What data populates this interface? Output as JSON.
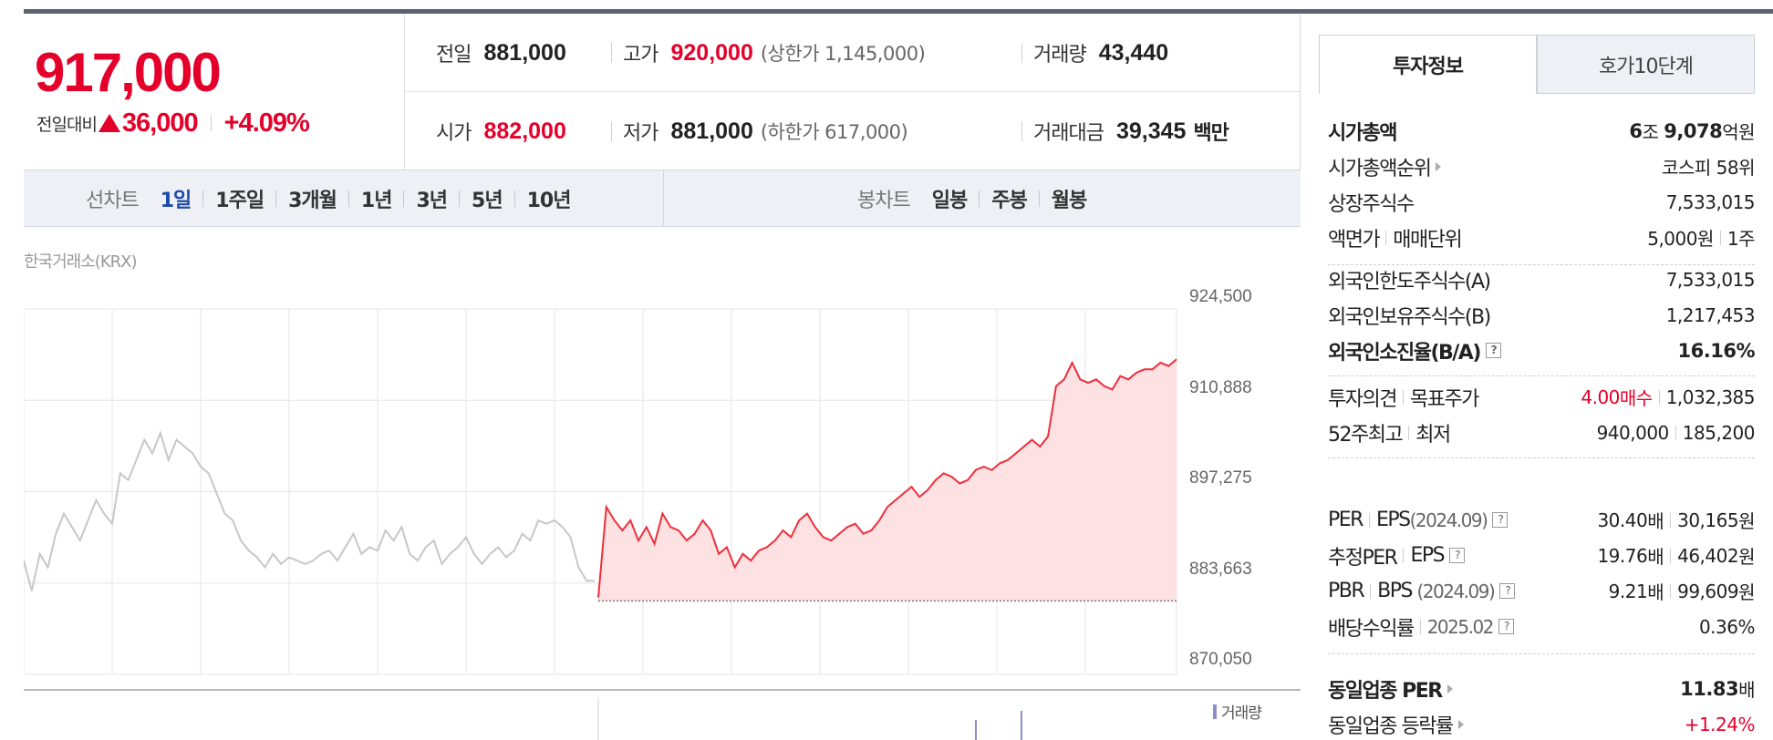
{
  "quote": {
    "current_price": "917,000",
    "change_label": "전일대비",
    "change_value": "36,000",
    "change_pct": "+4.09%",
    "prev_close_label": "전일",
    "prev_close": "881,000",
    "high_label": "고가",
    "high": "920,000",
    "upper_limit": "(상한가 1,145,000)",
    "volume_label": "거래량",
    "volume": "43,440",
    "open_label": "시가",
    "open": "882,000",
    "low_label": "저가",
    "low": "881,000",
    "lower_limit": "(하한가 617,000)",
    "amount_label": "거래대금",
    "amount": "39,345",
    "amount_unit": "백만",
    "colors": {
      "up": "#e4002b",
      "accent": "#1c4aa8"
    }
  },
  "period_bar": {
    "line_chart_label": "선차트",
    "line_periods": [
      "1일",
      "1주일",
      "3개월",
      "1년",
      "3년",
      "5년",
      "10년"
    ],
    "active_period": "1일",
    "candle_chart_label": "봉차트",
    "candle_periods": [
      "일봉",
      "주봉",
      "월봉"
    ]
  },
  "chart": {
    "exchange_label": "한국거래소(KRX)",
    "volume_legend": "거래량"
  },
  "chart_data": {
    "type": "line",
    "ylim": [
      870050,
      924500
    ],
    "yticks": [
      "924,500",
      "910,888",
      "897,275",
      "883,663",
      "870,050"
    ],
    "baseline": 881000,
    "series": [
      {
        "values": [
          887000,
          882500,
          888000,
          886000,
          891000,
          894000,
          892000,
          890000,
          893000,
          896000,
          894000,
          892500,
          900000,
          899000,
          902000,
          905000,
          903000,
          906000,
          902000,
          905000,
          904000,
          903000,
          901000,
          900000,
          897000,
          894000,
          893000,
          890000,
          888500,
          887500,
          886000,
          888000,
          886500,
          887500,
          887000,
          886500,
          887000,
          888000,
          888500,
          887000,
          889000,
          891000,
          888000,
          889000,
          888500,
          891500,
          890000,
          892000,
          888000,
          887000,
          889000,
          890000,
          886500,
          888000,
          889000,
          890500,
          888000,
          886500,
          888000,
          889000,
          887500,
          888500,
          891000,
          890000,
          893000,
          892500,
          893000,
          892000,
          890500,
          886000,
          884000,
          884000
        ]
      },
      {
        "values": [
          881500,
          895000,
          893000,
          891500,
          893000,
          890000,
          892000,
          889500,
          894000,
          892000,
          891500,
          890000,
          891000,
          893000,
          891500,
          888000,
          889000,
          886000,
          888000,
          887000,
          888500,
          889000,
          890000,
          891500,
          890500,
          893000,
          894000,
          892000,
          890500,
          890000,
          891000,
          892000,
          892500,
          891000,
          891500,
          893000,
          895000,
          896000,
          897000,
          898000,
          896500,
          897500,
          899000,
          900000,
          899500,
          898500,
          899000,
          900500,
          901000,
          900500,
          901500,
          902000,
          903000,
          904000,
          905000,
          904000,
          905500,
          913000,
          914000,
          916500,
          914000,
          913500,
          914000,
          913000,
          912500,
          914500,
          914000,
          915000,
          915500,
          915500,
          916500,
          916000,
          917000
        ]
      }
    ]
  },
  "invest_info": {
    "tabs": [
      "투자정보",
      "호가10단계"
    ],
    "market_cap_label": "시가총액",
    "market_cap_jo": "6",
    "market_cap_jo_unit": "조",
    "market_cap_eok": "9,078",
    "market_cap_eok_unit": "억원",
    "market_cap_rank_label": "시가총액순위",
    "market_cap_rank": "코스피 58위",
    "listed_shares_label": "상장주식수",
    "listed_shares": "7,533,015",
    "face_value_label": "액면가",
    "trade_unit_label": "매매단위",
    "face_value": "5,000원",
    "trade_unit": "1주",
    "foreign_limit_label": "외국인한도주식수(A)",
    "foreign_limit": "7,533,015",
    "foreign_hold_label": "외국인보유주식수(B)",
    "foreign_hold": "1,217,453",
    "foreign_ratio_label": "외국인소진율(B/A)",
    "foreign_ratio": "16.16%",
    "opinion_label": "투자의견",
    "target_label": "목표주가",
    "opinion_value": "4.00",
    "opinion_text": "매수",
    "target_price": "1,032,385",
    "week52_label": "52주최고",
    "week52_low_label": "최저",
    "week52_high": "940,000",
    "week52_low": "185,200",
    "per_label": "PER",
    "eps_label": "EPS",
    "per_date": "(2024.09)",
    "per_value": "30.40",
    "per_unit": "배",
    "eps_value": "30,165",
    "eps_unit": "원",
    "est_per_label": "추정PER",
    "est_eps_label": "EPS",
    "est_per_value": "19.76",
    "est_per_unit": "배",
    "est_eps_value": "46,402",
    "est_eps_unit": "원",
    "pbr_label": "PBR",
    "bps_label": "BPS",
    "pbr_date": "(2024.09)",
    "pbr_value": "9.21",
    "pbr_unit": "배",
    "bps_value": "99,609",
    "bps_unit": "원",
    "dividend_label": "배당수익률",
    "dividend_date": "2025.02",
    "dividend": "0.36%",
    "sector_per_label": "동일업종 PER",
    "sector_per": "11.83",
    "sector_per_unit": "배",
    "sector_change_label": "동일업종 등락률",
    "sector_change": "+1.24%",
    "help_mark": "?"
  }
}
